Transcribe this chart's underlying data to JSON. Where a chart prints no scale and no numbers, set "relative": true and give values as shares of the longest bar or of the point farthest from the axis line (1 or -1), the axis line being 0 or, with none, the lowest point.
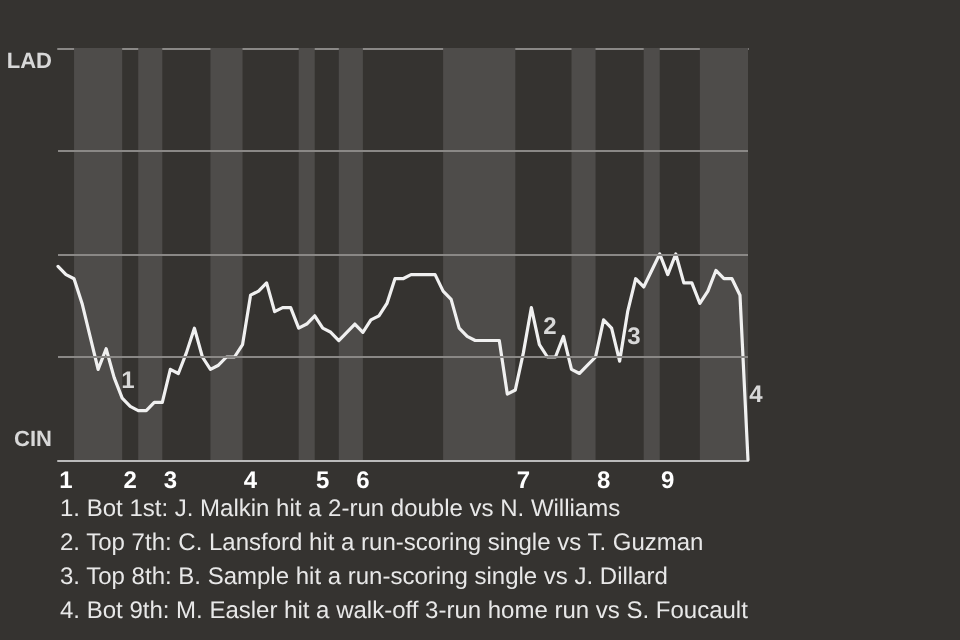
{
  "chart_data": {
    "type": "line",
    "relative": true,
    "categories": [
      null,
      "1",
      null,
      null,
      null,
      null,
      null,
      null,
      null,
      "2",
      null,
      null,
      null,
      null,
      "3",
      null,
      null,
      null,
      null,
      null,
      null,
      null,
      null,
      null,
      "4",
      null,
      null,
      null,
      null,
      null,
      null,
      null,
      null,
      "5",
      null,
      null,
      null,
      null,
      "6",
      null,
      null,
      null,
      null,
      null,
      null,
      null,
      null,
      null,
      null,
      null,
      null,
      null,
      null,
      null,
      null,
      null,
      null,
      null,
      "7",
      null,
      null,
      null,
      null,
      null,
      null,
      null,
      null,
      null,
      "8",
      null,
      null,
      null,
      null,
      null,
      null,
      null,
      "9",
      null,
      null,
      null,
      null,
      null,
      null,
      null,
      null,
      null,
      null
    ],
    "series": [
      {
        "color": "#f0f0f0",
        "values": [
          0.94,
          0.9,
          0.88,
          0.76,
          0.6,
          0.44,
          0.54,
          0.4,
          0.3,
          0.26,
          0.24,
          0.24,
          0.28,
          0.28,
          0.44,
          0.42,
          0.52,
          0.64,
          0.5,
          0.44,
          0.46,
          0.5,
          0.5,
          0.56,
          0.8,
          0.82,
          0.86,
          0.72,
          0.74,
          0.74,
          0.64,
          0.66,
          0.7,
          0.64,
          0.62,
          0.58,
          0.62,
          0.66,
          0.62,
          0.68,
          0.7,
          0.76,
          0.88,
          0.88,
          0.9,
          0.9,
          0.9,
          0.9,
          0.82,
          0.78,
          0.64,
          0.6,
          0.58,
          0.58,
          0.58,
          0.58,
          0.32,
          0.34,
          0.52,
          0.74,
          0.56,
          0.5,
          0.5,
          0.6,
          0.44,
          0.42,
          0.46,
          0.5,
          0.68,
          0.64,
          0.48,
          0.72,
          0.88,
          0.84,
          0.92,
          1,
          0.9,
          1,
          0.86,
          0.86,
          0.76,
          0.82,
          0.92,
          0.88,
          0.88,
          0.8,
          0
        ]
      }
    ],
    "ref_lines": [
      {
        "axis": "y",
        "value": 0.5,
        "color": "#8a8886"
      },
      {
        "axis": "y",
        "value": 1,
        "color": "#8a8886"
      },
      {
        "axis": "y",
        "value": 1.5,
        "color": "#8a8886"
      }
    ],
    "annotations": [
      "LAD",
      "CIN",
      "1",
      "2",
      "3",
      "4",
      "1. Bot 1st: J. Malkin hit a 2-run double vs N. Williams",
      "2. Top 7th: C. Lansford hit a run-scoring single vs T. Guzman",
      "3. Top 8th: B. Sample hit a run-scoring single vs J. Dillard",
      "4. Bot 9th: M. Easler hit a walk-off 3-run home run vs S. Foucault"
    ],
    "marker": "none",
    "line_style": "solid"
  }
}
